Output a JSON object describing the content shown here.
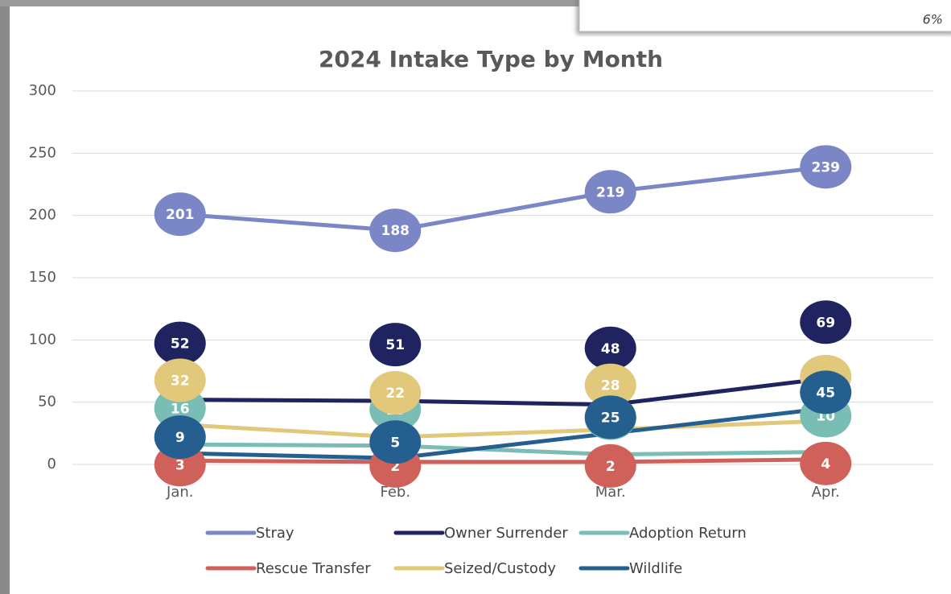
{
  "side_label": "6%",
  "chart_data": {
    "type": "line",
    "title": "2024 Intake Type by Month",
    "categories": [
      "Jan.",
      "Feb.",
      "Mar.",
      "Apr."
    ],
    "series": [
      {
        "name": "Stray",
        "color": "#7b86c6",
        "values": [
          201,
          188,
          219,
          239
        ]
      },
      {
        "name": "Owner Surrender",
        "color": "#1f2461",
        "values": [
          52,
          51,
          48,
          69
        ]
      },
      {
        "name": "Adoption Return",
        "color": "#79bdb5",
        "values": [
          16,
          15,
          8,
          10
        ]
      },
      {
        "name": "Rescue Transfer",
        "color": "#d0615a",
        "values": [
          3,
          2,
          2,
          4
        ]
      },
      {
        "name": "Seized/Custody",
        "color": "#e2c87a",
        "values": [
          32,
          22,
          28,
          35
        ]
      },
      {
        "name": "Wildlife",
        "color": "#245f8f",
        "values": [
          9,
          5,
          25,
          45
        ]
      }
    ],
    "ylim": [
      0,
      300
    ],
    "yticks": [
      0,
      50,
      100,
      150,
      200,
      250,
      300
    ],
    "grid": true,
    "legend": "bottom"
  }
}
